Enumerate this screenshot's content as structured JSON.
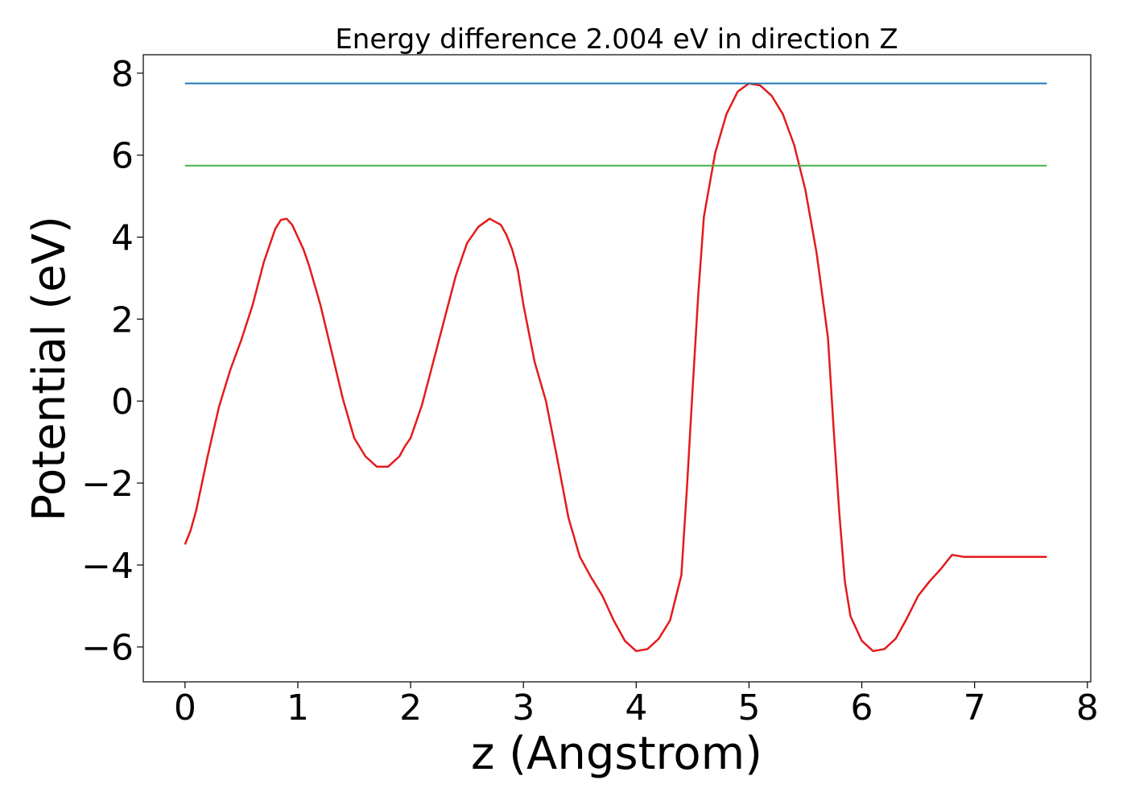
{
  "chart_data": {
    "type": "line",
    "title": "Energy difference 2.004 eV in direction Z",
    "xlabel": "z (Angstrom)",
    "ylabel": "Potential (eV)",
    "xlim": [
      -0.37,
      8.03
    ],
    "ylim": [
      -6.85,
      8.45
    ],
    "x_ticks": [
      0,
      1,
      2,
      3,
      4,
      5,
      6,
      7,
      8
    ],
    "x_tick_labels": [
      "0",
      "1",
      "2",
      "3",
      "4",
      "5",
      "6",
      "7",
      "8"
    ],
    "y_ticks": [
      -6,
      -4,
      -2,
      0,
      2,
      4,
      6,
      8
    ],
    "y_tick_labels": [
      "−6",
      "−4",
      "−2",
      "0",
      "2",
      "4",
      "6",
      "8"
    ],
    "grid": false,
    "legend": false,
    "series": [
      {
        "kind": "curve",
        "color": "#e41a1c",
        "x": [
          0,
          0.05,
          0.1,
          0.2,
          0.3,
          0.4,
          0.5,
          0.6,
          0.7,
          0.8,
          0.85,
          0.9,
          0.95,
          1.0,
          1.05,
          1.1,
          1.2,
          1.3,
          1.4,
          1.5,
          1.6,
          1.7,
          1.8,
          1.9,
          1.95,
          2.0,
          2.1,
          2.2,
          2.3,
          2.4,
          2.5,
          2.6,
          2.7,
          2.8,
          2.85,
          2.9,
          2.95,
          3.0,
          3.05,
          3.1,
          3.2,
          3.3,
          3.4,
          3.5,
          3.6,
          3.7,
          3.8,
          3.9,
          4.0,
          4.1,
          4.2,
          4.3,
          4.4,
          4.45,
          4.5,
          4.55,
          4.6,
          4.7,
          4.8,
          4.9,
          5.0,
          5.1,
          5.2,
          5.3,
          5.4,
          5.5,
          5.6,
          5.7,
          5.75,
          5.8,
          5.85,
          5.9,
          6.0,
          6.1,
          6.2,
          6.3,
          6.4,
          6.5,
          6.6,
          6.7,
          6.8,
          6.9,
          7.0,
          7.05,
          7.1,
          7.15,
          7.2,
          7.3,
          7.4,
          7.5,
          7.6,
          7.64
        ],
        "y": [
          -3.5,
          -3.15,
          -2.65,
          -1.35,
          -0.15,
          0.75,
          1.5,
          2.35,
          3.4,
          4.2,
          4.42,
          4.45,
          4.3,
          4.0,
          3.7,
          3.3,
          2.35,
          1.2,
          0.05,
          -0.9,
          -1.35,
          -1.6,
          -1.6,
          -1.35,
          -1.1,
          -0.9,
          -0.1,
          0.95,
          2.0,
          3.05,
          3.85,
          4.25,
          4.45,
          4.3,
          4.05,
          3.7,
          3.2,
          2.35,
          1.65,
          0.95,
          0.0,
          -1.4,
          -2.85,
          -3.8,
          -4.3,
          -4.75,
          -5.35,
          -5.85,
          -6.1,
          -6.05,
          -5.8,
          -5.35,
          -4.25,
          -2.1,
          0.3,
          2.6,
          4.5,
          6.05,
          7.0,
          7.55,
          7.75,
          7.7,
          7.45,
          7.0,
          6.25,
          5.15,
          3.6,
          1.55,
          -0.65,
          -2.7,
          -4.4,
          -5.25,
          -5.85,
          -6.1,
          -6.05,
          -5.8,
          -5.3,
          -4.75,
          -4.4,
          -4.1,
          -3.75,
          -3.8,
          -3.8,
          -3.8,
          -3.8,
          -3.8,
          -3.8,
          -3.8,
          -3.8,
          -3.8,
          -3.8,
          -3.8
        ]
      },
      {
        "kind": "hline",
        "color": "#1f77b4",
        "x": [
          0,
          7.64
        ],
        "y": [
          7.75,
          7.75
        ]
      },
      {
        "kind": "hline",
        "color": "#4daf4a",
        "x": [
          0,
          7.64
        ],
        "y": [
          5.746,
          5.746
        ]
      }
    ]
  }
}
